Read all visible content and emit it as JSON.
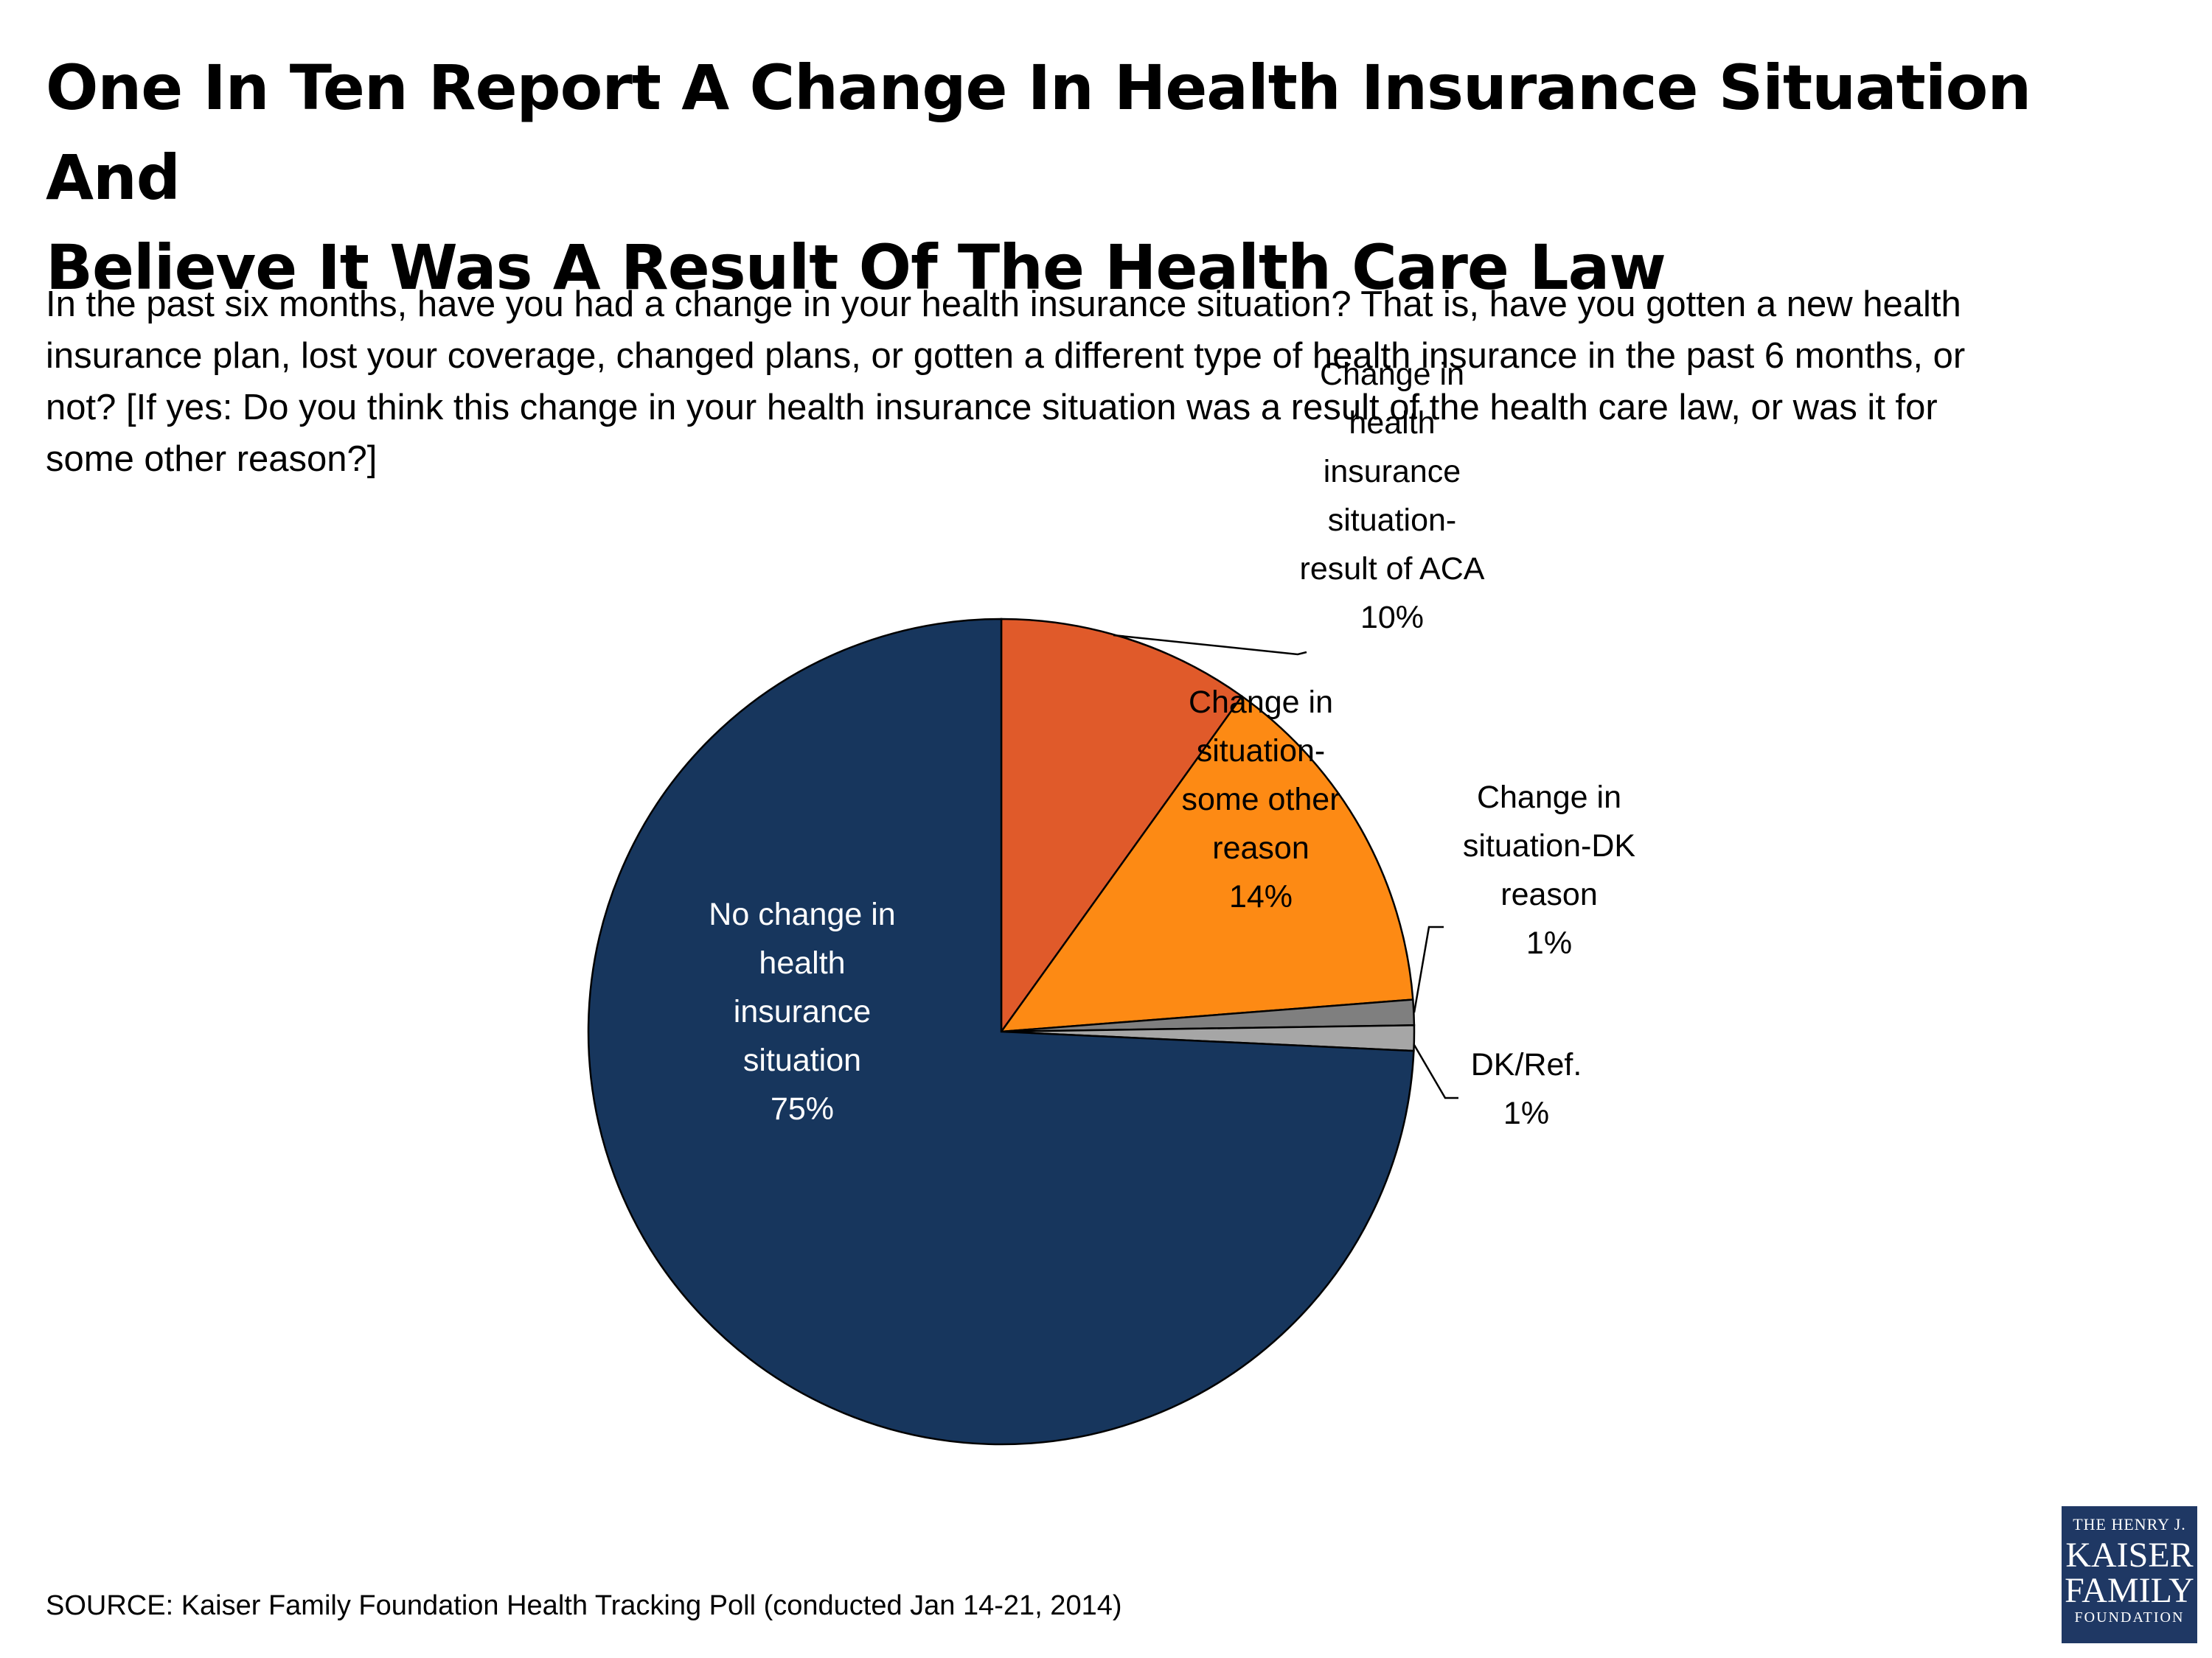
{
  "title": {
    "line1": "One In Ten Report A Change In Health Insurance Situation And",
    "line2": "Believe It Was A Result Of The Health Care Law"
  },
  "subtitle": {
    "line1": "In the past six months, have you had a change in your health insurance situation? That is, have you gotten a new health",
    "line2": "insurance plan, lost your coverage, changed  plans, or gotten a different type of health insurance in the past 6 months, or",
    "line3": "not? [If yes: Do you think this change in your health insurance situation was a result of the health care law, or was it for",
    "line4": "some other reason?]"
  },
  "chart_data": {
    "type": "pie",
    "start_angle_deg": 0,
    "direction": "clockwise",
    "slices": [
      {
        "label_lines": [
          "Change in",
          "health",
          "insurance",
          "situation-",
          "result of ACA",
          "10%"
        ],
        "value": 10,
        "color": "#e05a2a",
        "label_text_color": "#000000"
      },
      {
        "label_lines": [
          "Change in",
          "situation-",
          "some other",
          "reason",
          "14%"
        ],
        "value": 14,
        "color": "#fd8a14",
        "label_text_color": "#000000"
      },
      {
        "label_lines": [
          "Change in",
          "situation-DK",
          "reason",
          "1%"
        ],
        "value": 1,
        "color": "#7f7f7f",
        "label_text_color": "#000000"
      },
      {
        "label_lines": [
          "DK/Ref.",
          "1%"
        ],
        "value": 1,
        "color": "#a6a6a6",
        "label_text_color": "#000000"
      },
      {
        "label_lines": [
          "No change in",
          "health",
          "insurance",
          "situation",
          "75%"
        ],
        "value": 75,
        "color": "#17365d",
        "label_text_color": "#ffffff"
      }
    ]
  },
  "source": "SOURCE: Kaiser Family Foundation Health Tracking Poll (conducted Jan 14-21, 2014)",
  "logo": {
    "line1": "THE HENRY J.",
    "line2": "KAISER",
    "line3": "FAMILY",
    "line4": "FOUNDATION"
  }
}
